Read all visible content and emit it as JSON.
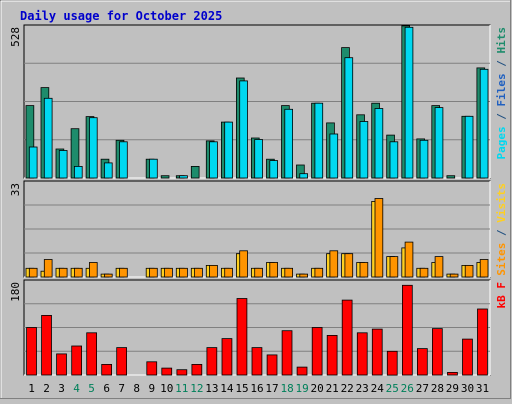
{
  "chart_data": {
    "type": "bar",
    "title": "Daily usage for October 2025",
    "x": [
      "1",
      "2",
      "3",
      "4",
      "5",
      "6",
      "7",
      "8",
      "9",
      "10",
      "11",
      "12",
      "13",
      "14",
      "15",
      "16",
      "17",
      "18",
      "19",
      "20",
      "21",
      "22",
      "23",
      "24",
      "25",
      "26",
      "27",
      "28",
      "29",
      "30",
      "31"
    ],
    "weekend_days": [
      "4",
      "5",
      "11",
      "12",
      "18",
      "19",
      "25",
      "26"
    ],
    "panels": [
      {
        "id": "hits",
        "ymax_label": "528",
        "ymax": 528,
        "series": [
          {
            "name": "Hits",
            "color": "#1e8c6c",
            "values": [
              250,
              312,
              100,
              170,
              212,
              65,
              130,
              0,
              65,
              8,
              8,
              40,
              128,
              193,
              345,
              138,
              65,
              250,
              45,
              258,
              190,
              450,
              218,
              258,
              148,
              525,
              135,
              250,
              8,
              213,
              380
            ]
          },
          {
            "name": "Files",
            "color": "#00d8f0",
            "values": [
              107,
              275,
              95,
              40,
              208,
              52,
              125,
              0,
              65,
              0,
              8,
              0,
              125,
              193,
              335,
              133,
              60,
              237,
              15,
              258,
              152,
              415,
              195,
              240,
              125,
              520,
              130,
              243,
              0,
              213,
              375
            ]
          },
          {
            "name": "Pages",
            "color": "#2090c0",
            "values": [
              0,
              0,
              0,
              0,
              0,
              0,
              0,
              0,
              0,
              0,
              0,
              0,
              0,
              0,
              0,
              0,
              0,
              0,
              0,
              0,
              0,
              0,
              0,
              0,
              0,
              0,
              0,
              0,
              0,
              0,
              0
            ]
          }
        ],
        "right_labels": [
          {
            "text": "Pages",
            "color": "#00d8f0"
          },
          {
            "text": " / ",
            "color": "#205080"
          },
          {
            "text": "Files",
            "color": "#2060c0"
          },
          {
            "text": " / ",
            "color": "#205080"
          },
          {
            "text": "Hits",
            "color": "#1e8c6c"
          }
        ]
      },
      {
        "id": "visits",
        "ymax_label": "33",
        "ymax": 33,
        "series": [
          {
            "name": "Visits",
            "color": "#ffd020",
            "values": [
              3,
              2,
              3,
              3,
              3,
              1,
              3,
              0,
              3,
              3,
              3,
              3,
              4,
              3,
              8,
              3,
              5,
              3,
              1,
              3,
              8,
              8,
              5,
              26,
              7,
              10,
              3,
              5,
              1,
              4,
              5
            ]
          },
          {
            "name": "Sites",
            "color": "#ff9400",
            "values": [
              3,
              6,
              3,
              3,
              5,
              1,
              3,
              0,
              3,
              3,
              3,
              3,
              4,
              3,
              9,
              3,
              5,
              3,
              1,
              3,
              9,
              8,
              5,
              27,
              7,
              12,
              3,
              7,
              1,
              4,
              6
            ]
          }
        ],
        "right_labels": [
          {
            "text": "Sites",
            "color": "#ff9400"
          },
          {
            "text": " / ",
            "color": "#205080"
          },
          {
            "text": "Visits",
            "color": "#ffd020"
          }
        ]
      },
      {
        "id": "kbytes",
        "ymax_label": "180",
        "ymax": 180,
        "series": [
          {
            "name": "kB F",
            "color": "#ff0000",
            "values": [
              90,
              113,
              40,
              55,
              80,
              20,
              52,
              0,
              25,
              13,
              10,
              20,
              52,
              69,
              145,
              52,
              38,
              84,
              15,
              90,
              75,
              142,
              80,
              87,
              45,
              170,
              50,
              88,
              5,
              68,
              125
            ]
          }
        ],
        "right_labels": [
          {
            "text": "kB F",
            "color": "#ff0000"
          }
        ]
      }
    ]
  }
}
